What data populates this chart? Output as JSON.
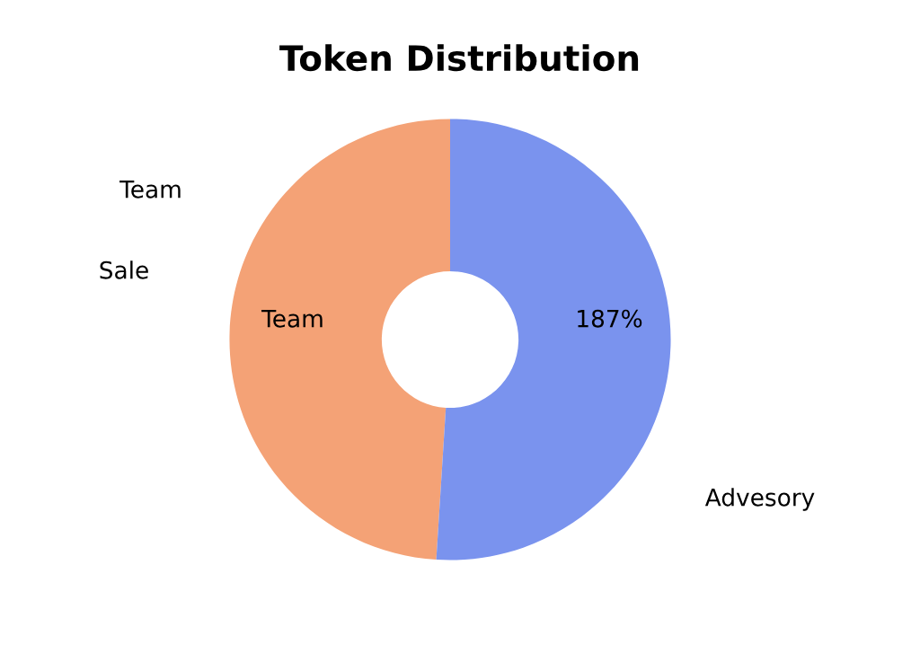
{
  "chart_data": {
    "type": "donut",
    "title": "Token Distribution",
    "categories": [
      "Team",
      "Advesory"
    ],
    "values": [
      49,
      51
    ],
    "colors": [
      "#f4a276",
      "#7a93ee"
    ],
    "annotations": [
      "Sale",
      "Team",
      "187%"
    ]
  }
}
